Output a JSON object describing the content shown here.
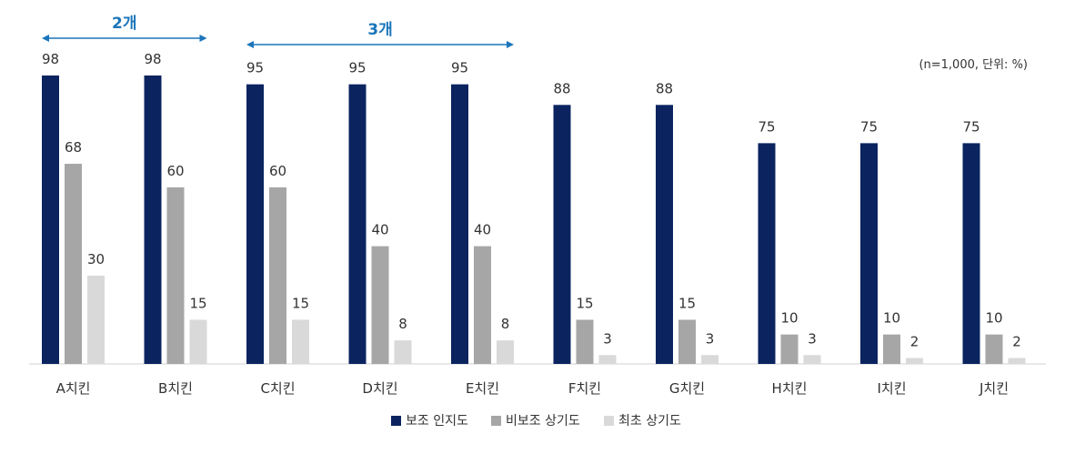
{
  "chart_data": {
    "type": "bar",
    "title": "",
    "xlabel": "",
    "ylabel": "",
    "unit_note": "(n=1,000, 단위: %)",
    "categories": [
      "A치킨",
      "B치킨",
      "C치킨",
      "D치킨",
      "E치킨",
      "F치킨",
      "G치킨",
      "H치킨",
      "I치킨",
      "J치킨"
    ],
    "series": [
      {
        "name": "보조 인지도",
        "color": "#0b2460",
        "values": [
          98,
          98,
          95,
          95,
          95,
          88,
          88,
          75,
          75,
          75
        ]
      },
      {
        "name": "비보조 상기도",
        "color": "#a6a6a6",
        "values": [
          68,
          60,
          60,
          40,
          40,
          15,
          15,
          10,
          10,
          10
        ]
      },
      {
        "name": "최초 상기도",
        "color": "#d9d9d9",
        "values": [
          30,
          15,
          15,
          8,
          8,
          3,
          3,
          3,
          2,
          2
        ]
      }
    ],
    "ylim": [
      0,
      100
    ],
    "grid": false,
    "legend_position": "bottom-center",
    "annotations": [
      {
        "label": "2개",
        "from_category": 0,
        "to_category": 1,
        "color": "#1a75bb"
      },
      {
        "label": "3개",
        "from_category": 2,
        "to_category": 4,
        "color": "#1a75bb"
      }
    ]
  }
}
